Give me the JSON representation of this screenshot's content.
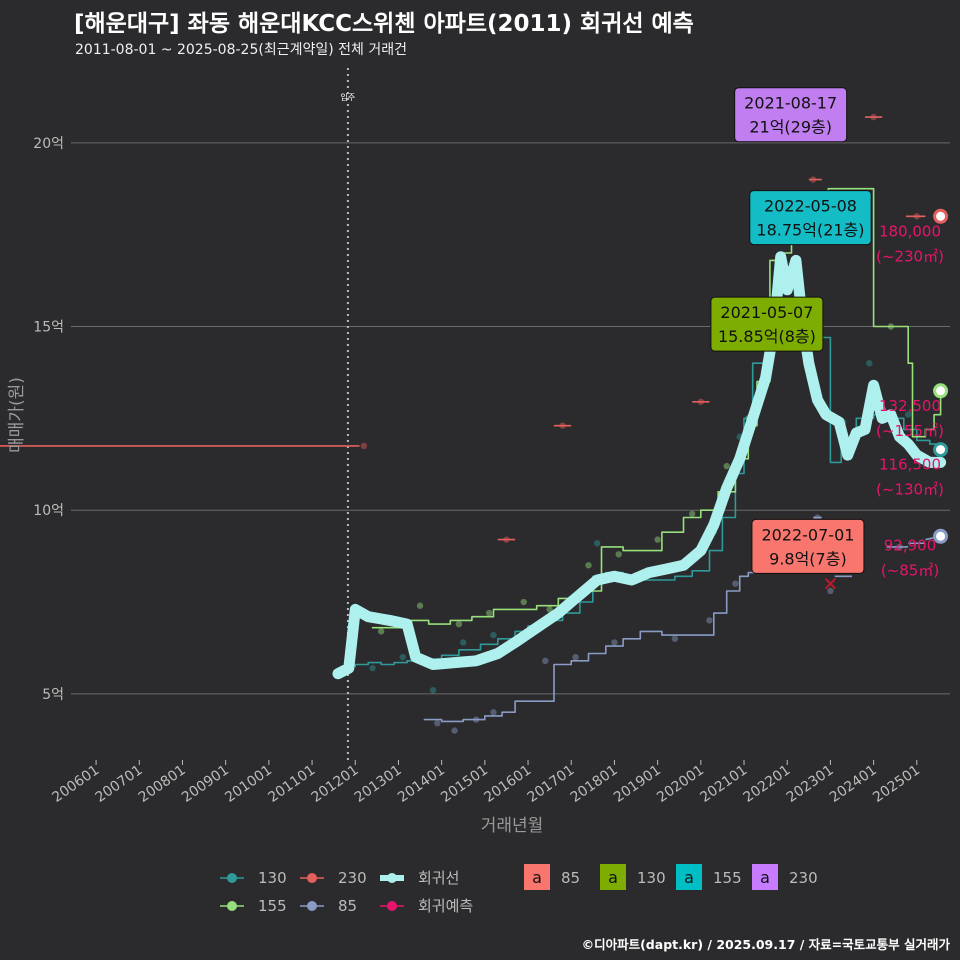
{
  "header": {
    "title": "[해운대구] 좌동 해운대KCC스위첸 아파트(2011) 회귀선 예측",
    "subtitle": "2011-08-01 ~ 2025-08-25(최근계약일) 전체 거래건"
  },
  "footer": {
    "credit": "©디아파트(dapt.kr) / 2025.09.17 / 자료=국토교통부 실거래가"
  },
  "chart_data": {
    "type": "scatter",
    "xlabel": "거래년월",
    "ylabel": "매매가(원)",
    "x_range": [
      "2005-05",
      "2025-12"
    ],
    "ylim": [
      3.2,
      22.2
    ],
    "x_ticks": [
      "200601",
      "200701",
      "200801",
      "200901",
      "201001",
      "201101",
      "201201",
      "201301",
      "201401",
      "201501",
      "201601",
      "201701",
      "201801",
      "201901",
      "202001",
      "202101",
      "202201",
      "202301",
      "202401",
      "202501"
    ],
    "y_ticks": [
      {
        "v": 5,
        "label": "5억"
      },
      {
        "v": 10,
        "label": "10억"
      },
      {
        "v": 15,
        "label": "15억"
      },
      {
        "v": 20,
        "label": "20억"
      }
    ],
    "move_in": {
      "x": 2011.83,
      "label": "입주"
    },
    "colors": {
      "85": "#8a9cc6",
      "130": "#2e9a9a",
      "155": "#97e07c",
      "230": "#e4605c",
      "regression": "#aef0ee",
      "forecast": "#e8146c"
    },
    "series": [
      {
        "name": "130",
        "color": "#2e9a9a",
        "points": [
          [
            2011.9,
            5.75
          ],
          [
            2012.0,
            5.8
          ],
          [
            2012.3,
            5.85
          ],
          [
            2012.6,
            5.8
          ],
          [
            2012.9,
            5.85
          ],
          [
            2013.2,
            5.9
          ],
          [
            2013.6,
            5.95
          ],
          [
            2014.0,
            6.05
          ],
          [
            2014.4,
            6.2
          ],
          [
            2014.9,
            6.35
          ],
          [
            2015.3,
            6.5
          ],
          [
            2015.7,
            6.7
          ],
          [
            2016.0,
            6.85
          ],
          [
            2016.4,
            7.0
          ],
          [
            2016.8,
            7.2
          ],
          [
            2017.2,
            7.5
          ],
          [
            2017.5,
            8.2
          ],
          [
            2017.8,
            8.3
          ],
          [
            2018.2,
            8.1
          ],
          [
            2018.6,
            8.1
          ],
          [
            2019.0,
            8.1
          ],
          [
            2019.4,
            8.2
          ],
          [
            2019.8,
            8.35
          ],
          [
            2020.2,
            8.9
          ],
          [
            2020.5,
            9.8
          ],
          [
            2020.8,
            11.0
          ],
          [
            2021.0,
            12.5
          ],
          [
            2021.2,
            14.0
          ],
          [
            2021.5,
            15.0
          ],
          [
            2021.8,
            15.1
          ],
          [
            2022.0,
            15.0
          ],
          [
            2022.3,
            14.7
          ],
          [
            2022.6,
            14.7
          ],
          [
            2022.75,
            14.7
          ],
          [
            2023.0,
            11.3
          ],
          [
            2023.25,
            11.8
          ],
          [
            2023.6,
            12.5
          ],
          [
            2024.0,
            12.6
          ],
          [
            2024.4,
            12.5
          ],
          [
            2024.7,
            12.2
          ],
          [
            2025.0,
            11.9
          ],
          [
            2025.3,
            11.8
          ],
          [
            2025.55,
            11.65
          ]
        ],
        "dots": [
          [
            2012.4,
            5.7
          ],
          [
            2013.1,
            6.0
          ],
          [
            2013.8,
            5.1
          ],
          [
            2014.5,
            6.4
          ],
          [
            2015.2,
            6.6
          ],
          [
            2016.1,
            6.8
          ],
          [
            2017.0,
            7.6
          ],
          [
            2017.6,
            9.1
          ],
          [
            2018.5,
            8.1
          ],
          [
            2019.6,
            8.6
          ],
          [
            2020.3,
            9.4
          ],
          [
            2020.9,
            12.0
          ],
          [
            2021.4,
            14.8
          ],
          [
            2022.2,
            15.0
          ],
          [
            2023.3,
            12.4
          ],
          [
            2023.9,
            14.0
          ],
          [
            2024.8,
            12.6
          ]
        ]
      },
      {
        "name": "155",
        "color": "#97e07c",
        "points": [
          [
            2012.4,
            6.8
          ],
          [
            2012.9,
            6.8
          ],
          [
            2013.3,
            7.0
          ],
          [
            2013.7,
            6.9
          ],
          [
            2014.2,
            7.0
          ],
          [
            2014.7,
            7.1
          ],
          [
            2015.2,
            7.3
          ],
          [
            2015.7,
            7.3
          ],
          [
            2016.2,
            7.4
          ],
          [
            2016.7,
            7.6
          ],
          [
            2017.2,
            7.8
          ],
          [
            2017.7,
            9.0
          ],
          [
            2018.2,
            8.9
          ],
          [
            2018.7,
            8.9
          ],
          [
            2019.1,
            9.4
          ],
          [
            2019.6,
            9.8
          ],
          [
            2020.0,
            10.0
          ],
          [
            2020.4,
            10.5
          ],
          [
            2020.8,
            11.4
          ],
          [
            2021.1,
            12.3
          ],
          [
            2021.3,
            13.5
          ],
          [
            2021.6,
            16.8
          ],
          [
            2021.9,
            17.0
          ],
          [
            2022.1,
            17.5
          ],
          [
            2022.4,
            17.5
          ],
          [
            2022.6,
            17.5
          ],
          [
            2022.8,
            18.5
          ],
          [
            2022.95,
            18.75
          ],
          [
            2023.2,
            18.75
          ],
          [
            2024.0,
            15.0
          ],
          [
            2024.5,
            15.0
          ],
          [
            2024.8,
            14.0
          ],
          [
            2024.9,
            12.0
          ],
          [
            2025.2,
            12.2
          ],
          [
            2025.4,
            12.6
          ],
          [
            2025.55,
            13.25
          ]
        ],
        "dots": [
          [
            2012.6,
            6.7
          ],
          [
            2013.5,
            7.4
          ],
          [
            2014.4,
            6.9
          ],
          [
            2015.1,
            7.2
          ],
          [
            2015.9,
            7.5
          ],
          [
            2016.5,
            7.3
          ],
          [
            2017.4,
            8.5
          ],
          [
            2018.1,
            8.8
          ],
          [
            2019.0,
            9.2
          ],
          [
            2019.8,
            9.9
          ],
          [
            2020.6,
            11.2
          ],
          [
            2021.1,
            12.5
          ],
          [
            2024.4,
            15.0
          ]
        ]
      },
      {
        "name": "230",
        "color": "#e4605c",
        "segments": [
          [
            2012.1,
            11.75,
            12.3,
            11.75
          ],
          [
            2015.3,
            9.2,
            2015.7,
            9.2
          ],
          [
            2016.6,
            12.3,
            2017.0,
            12.3
          ],
          [
            2019.8,
            12.95,
            2020.2,
            12.95
          ],
          [
            2021.2,
            15.0,
            2021.4,
            15.0
          ],
          [
            2021.7,
            21.0,
            2022.0,
            21.0
          ],
          [
            2022.5,
            19.0,
            2022.8,
            19.0
          ],
          [
            2023.8,
            20.7,
            2024.2,
            20.7
          ],
          [
            2024.75,
            18.0,
            2025.2,
            18.0
          ]
        ],
        "dots": [
          [
            2012.2,
            11.75
          ],
          [
            2015.5,
            9.2
          ],
          [
            2016.8,
            12.3
          ],
          [
            2020.0,
            12.95
          ],
          [
            2021.3,
            15.0
          ],
          [
            2021.8,
            21.0
          ],
          [
            2022.6,
            19.0
          ],
          [
            2024.0,
            20.7
          ],
          [
            2025.0,
            18.0
          ]
        ]
      },
      {
        "name": "85",
        "color": "#8a9cc6",
        "points": [
          [
            2013.6,
            4.3
          ],
          [
            2014.0,
            4.25
          ],
          [
            2014.5,
            4.3
          ],
          [
            2015.0,
            4.4
          ],
          [
            2015.4,
            4.5
          ],
          [
            2015.7,
            4.8
          ],
          [
            2016.2,
            4.8
          ],
          [
            2016.6,
            5.8
          ],
          [
            2017.0,
            5.9
          ],
          [
            2017.4,
            6.1
          ],
          [
            2017.8,
            6.3
          ],
          [
            2018.2,
            6.5
          ],
          [
            2018.6,
            6.7
          ],
          [
            2019.1,
            6.6
          ],
          [
            2019.6,
            6.6
          ],
          [
            2020.0,
            6.6
          ],
          [
            2020.3,
            7.2
          ],
          [
            2020.6,
            7.8
          ],
          [
            2020.9,
            8.2
          ],
          [
            2021.1,
            8.3
          ],
          [
            2021.5,
            8.6
          ]
        ],
        "segments2": [
          [
            2022.6,
            9.8,
            2022.8,
            9.8
          ],
          [
            2022.8,
            8.7,
            2023.1,
            8.7
          ],
          [
            2023.1,
            8.2,
            2023.5,
            8.2
          ],
          [
            2024.3,
            9.0,
            2024.8,
            9.0
          ],
          [
            2024.8,
            9.1,
            2025.2,
            9.1
          ],
          [
            2025.2,
            9.2,
            2025.55,
            9.29
          ]
        ],
        "dots": [
          [
            2013.9,
            4.2
          ],
          [
            2014.3,
            4.0
          ],
          [
            2014.8,
            4.3
          ],
          [
            2015.2,
            4.5
          ],
          [
            2016.4,
            5.9
          ],
          [
            2017.1,
            6.0
          ],
          [
            2018.0,
            6.4
          ],
          [
            2019.4,
            6.5
          ],
          [
            2020.2,
            7.0
          ],
          [
            2020.8,
            8.0
          ],
          [
            2022.7,
            9.8
          ],
          [
            2023.0,
            7.8
          ],
          [
            2024.6,
            9.0
          ]
        ]
      },
      {
        "name": "회귀선",
        "color": "#aef0ee",
        "points": [
          [
            2011.6,
            5.55
          ],
          [
            2011.85,
            5.7
          ],
          [
            2012.0,
            7.3
          ],
          [
            2012.3,
            7.1
          ],
          [
            2012.8,
            7.0
          ],
          [
            2013.2,
            6.9
          ],
          [
            2013.4,
            6.0
          ],
          [
            2013.8,
            5.8
          ],
          [
            2014.3,
            5.85
          ],
          [
            2014.8,
            5.9
          ],
          [
            2015.3,
            6.1
          ],
          [
            2015.7,
            6.4
          ],
          [
            2016.2,
            6.8
          ],
          [
            2016.7,
            7.2
          ],
          [
            2017.0,
            7.5
          ],
          [
            2017.3,
            7.8
          ],
          [
            2017.6,
            8.1
          ],
          [
            2018.0,
            8.2
          ],
          [
            2018.4,
            8.1
          ],
          [
            2018.8,
            8.3
          ],
          [
            2019.2,
            8.4
          ],
          [
            2019.6,
            8.5
          ],
          [
            2020.0,
            8.9
          ],
          [
            2020.3,
            9.6
          ],
          [
            2020.6,
            10.6
          ],
          [
            2020.9,
            11.4
          ],
          [
            2021.2,
            12.5
          ],
          [
            2021.5,
            13.6
          ],
          [
            2021.7,
            15.0
          ],
          [
            2021.85,
            16.9
          ],
          [
            2022.0,
            16.0
          ],
          [
            2022.2,
            16.8
          ],
          [
            2022.35,
            15.2
          ],
          [
            2022.5,
            14.0
          ],
          [
            2022.7,
            13.0
          ],
          [
            2022.9,
            12.6
          ],
          [
            2023.2,
            12.4
          ],
          [
            2023.4,
            11.5
          ],
          [
            2023.6,
            12.1
          ],
          [
            2023.8,
            12.2
          ],
          [
            2024.0,
            13.4
          ],
          [
            2024.2,
            12.5
          ],
          [
            2024.4,
            12.6
          ],
          [
            2024.6,
            12.0
          ],
          [
            2024.8,
            11.8
          ],
          [
            2025.0,
            11.5
          ],
          [
            2025.3,
            11.3
          ],
          [
            2025.55,
            11.3
          ]
        ]
      }
    ],
    "forecast_markers": [
      {
        "series": "230",
        "x": 2025.55,
        "y": 18.0,
        "value": "180,000",
        "area": "(~230㎡)"
      },
      {
        "series": "155",
        "x": 2025.55,
        "y": 13.25,
        "value": "132,500",
        "area": "(~155㎡)"
      },
      {
        "series": "130",
        "x": 2025.55,
        "y": 11.65,
        "value": "116,500",
        "area": "(~130㎡)"
      },
      {
        "series": "85",
        "x": 2025.55,
        "y": 9.29,
        "value": "92,900",
        "area": "(~85㎡)"
      }
    ],
    "x_markers": [
      [
        2021.3,
        15.0
      ],
      [
        2023.0,
        8.0
      ]
    ],
    "annotations": [
      {
        "date": "2021-08-17",
        "text": "21억(29층)",
        "color": "#c07ef0",
        "series": "230",
        "x": 2021.2,
        "y": 21.5
      },
      {
        "date": "2022-05-08",
        "text": "18.75억(21층)",
        "color": "#14bcc6",
        "series": "155",
        "x": 2021.55,
        "y": 18.7
      },
      {
        "date": "2021-05-07",
        "text": "15.85억(8층)",
        "color": "#7cad00",
        "series": "130",
        "x": 2020.65,
        "y": 15.8
      },
      {
        "date": "2022-07-01",
        "text": "9.8억(7층)",
        "color": "#f8766d",
        "series": "85",
        "x": 2021.6,
        "y": 9.75
      }
    ],
    "legend": {
      "lines": [
        {
          "key": "130",
          "color": "#2e9a9a"
        },
        {
          "key": "230",
          "color": "#e4605c"
        },
        {
          "key": "회귀선",
          "color": "#aef0ee"
        },
        {
          "key": "155",
          "color": "#97e07c"
        },
        {
          "key": "85",
          "color": "#8a9cc6"
        },
        {
          "key": "회귀예측",
          "color": "#e8146c"
        }
      ],
      "boxes": [
        {
          "key": "85",
          "color": "#f8766d"
        },
        {
          "key": "130",
          "color": "#7cad00"
        },
        {
          "key": "155",
          "color": "#00bfc4"
        },
        {
          "key": "230",
          "color": "#c77cff"
        }
      ],
      "box_glyph": "a"
    }
  }
}
